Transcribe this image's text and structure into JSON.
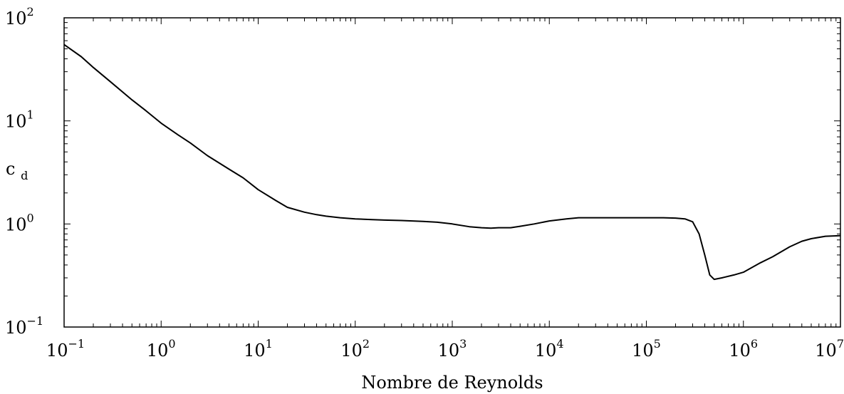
{
  "chart_data": {
    "type": "line",
    "title": "",
    "xlabel": "Nombre de Reynolds",
    "ylabel_base": "c",
    "ylabel_sub": "d",
    "xscale": "log",
    "yscale": "log",
    "xlim": [
      0.1,
      10000000
    ],
    "ylim": [
      0.1,
      100
    ],
    "grid": false,
    "x_ticks": [
      {
        "base": "10",
        "exp": "−1",
        "value": 0.1
      },
      {
        "base": "10",
        "exp": "0",
        "value": 1
      },
      {
        "base": "10",
        "exp": "1",
        "value": 10
      },
      {
        "base": "10",
        "exp": "2",
        "value": 100
      },
      {
        "base": "10",
        "exp": "3",
        "value": 1000
      },
      {
        "base": "10",
        "exp": "4",
        "value": 10000
      },
      {
        "base": "10",
        "exp": "5",
        "value": 100000
      },
      {
        "base": "10",
        "exp": "6",
        "value": 1000000
      },
      {
        "base": "10",
        "exp": "7",
        "value": 10000000
      }
    ],
    "y_ticks": [
      {
        "base": "10",
        "exp": "−1",
        "value": 0.1
      },
      {
        "base": "10",
        "exp": "0",
        "value": 1
      },
      {
        "base": "10",
        "exp": "1",
        "value": 10
      },
      {
        "base": "10",
        "exp": "2",
        "value": 100
      }
    ],
    "series": [
      {
        "color": "#000000",
        "x": [
          0.1,
          0.15,
          0.2,
          0.3,
          0.5,
          0.7,
          1,
          1.5,
          2,
          3,
          5,
          7,
          10,
          15,
          20,
          30,
          40,
          50,
          70,
          100,
          150,
          200,
          300,
          500,
          700,
          1000,
          1500,
          2000,
          2500,
          3000,
          4000,
          5000,
          7000,
          10000,
          15000,
          20000,
          50000,
          100000,
          150000,
          200000,
          250000,
          300000,
          350000,
          400000,
          450000,
          500000,
          600000,
          800000,
          1000000,
          1500000,
          2000000,
          3000000,
          4000000,
          5000000,
          7000000,
          10000000
        ],
        "y": [
          55,
          42,
          33,
          24,
          16,
          12.5,
          9.5,
          7.3,
          6.1,
          4.6,
          3.4,
          2.8,
          2.15,
          1.7,
          1.45,
          1.3,
          1.23,
          1.19,
          1.15,
          1.12,
          1.1,
          1.09,
          1.08,
          1.06,
          1.04,
          1.0,
          0.94,
          0.92,
          0.91,
          0.92,
          0.92,
          0.95,
          1.0,
          1.07,
          1.12,
          1.15,
          1.15,
          1.15,
          1.15,
          1.14,
          1.12,
          1.05,
          0.8,
          0.5,
          0.32,
          0.29,
          0.3,
          0.32,
          0.34,
          0.42,
          0.48,
          0.6,
          0.68,
          0.72,
          0.76,
          0.77
        ]
      }
    ]
  }
}
